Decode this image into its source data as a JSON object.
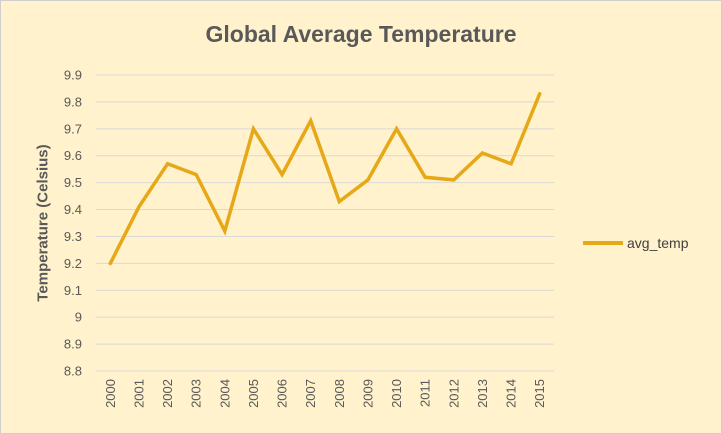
{
  "chart_data": {
    "type": "line",
    "title": "Global Average Temperature",
    "xlabel": "",
    "ylabel": "Temperature (Celsius)",
    "x": [
      "2000",
      "2001",
      "2002",
      "2003",
      "2004",
      "2005",
      "2006",
      "2007",
      "2008",
      "2009",
      "2010",
      "2011",
      "2012",
      "2013",
      "2014",
      "2015"
    ],
    "y_ticks": [
      "8.8",
      "8.9",
      "9",
      "9.1",
      "9.2",
      "9.3",
      "9.4",
      "9.5",
      "9.6",
      "9.7",
      "9.8",
      "9.9"
    ],
    "ylim": [
      8.8,
      9.9
    ],
    "grid": true,
    "legend_position": "right",
    "series": [
      {
        "name": "avg_temp",
        "color": "#E6A817",
        "values": [
          9.2,
          9.41,
          9.57,
          9.53,
          9.32,
          9.7,
          9.53,
          9.73,
          9.43,
          9.51,
          9.7,
          9.52,
          9.51,
          9.61,
          9.57,
          9.83
        ]
      }
    ]
  },
  "style": {
    "background": "#FFF2CC",
    "grid_color": "#D9D9D9",
    "text_color": "#595959"
  }
}
